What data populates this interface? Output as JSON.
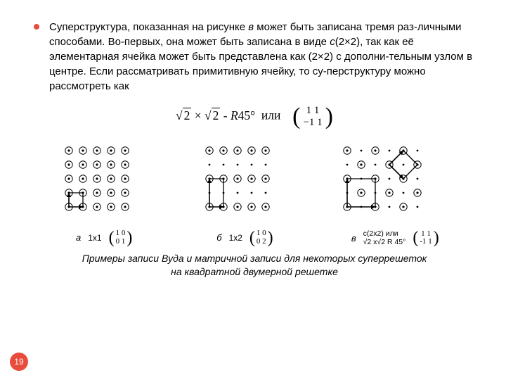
{
  "bullet_color": "#e84c3d",
  "paragraph": "Суперструктура, показанная на рисунке <em>в</em> может быть записана тремя раз-личными способами. Во-первых, она может быть записана в виде <em>c</em>(2×2), так как её элементарная ячейка может быть представлена как (2×2) с дополни-тельным узлом в центре. Если рассматривать примитивную ячейку, то су-перструктуру можно рассмотреть как",
  "formula": {
    "left": "√2 × √2 - R45°",
    "mid": "или",
    "matrix": [
      [
        "1",
        "1"
      ],
      [
        "−1",
        "1"
      ]
    ]
  },
  "lattice": {
    "rows": 5,
    "cols": 5,
    "spacing": 20,
    "node_radius": 5.2,
    "dot_radius": 1.4,
    "stroke": "#000000"
  },
  "diagrams": {
    "a": {
      "letter": "а",
      "label": "1x1",
      "matrix": [
        [
          "1",
          "0"
        ],
        [
          "0",
          "1"
        ]
      ]
    },
    "b": {
      "letter": "б",
      "label": "1x2",
      "matrix": [
        [
          "1",
          "0"
        ],
        [
          "0",
          "2"
        ]
      ]
    },
    "c": {
      "letter": "в",
      "stack": [
        "c(2x2) или",
        "√2 x√2 R 45°"
      ],
      "matrix": [
        [
          "1",
          "1"
        ],
        [
          "-1",
          "1"
        ]
      ]
    }
  },
  "caption": "Примеры записи Вуда и матричной записи для некоторых суперрешеток на квадратной двумерной решетке",
  "page_number": "19"
}
